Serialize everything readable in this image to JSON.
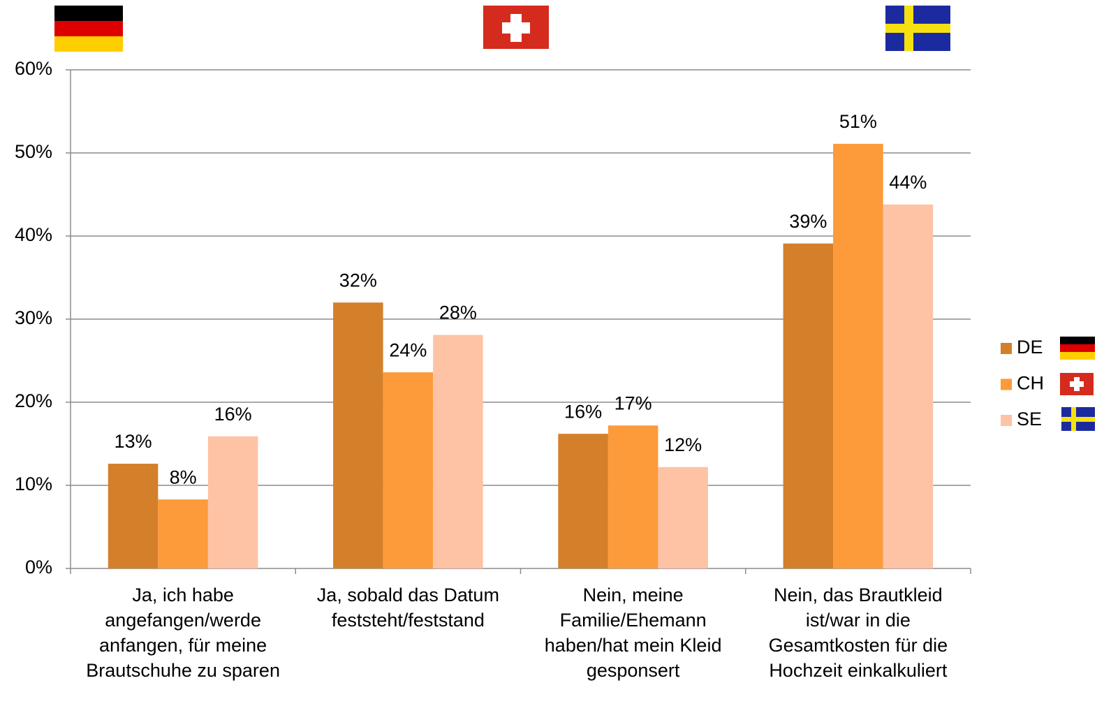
{
  "chart_data": {
    "type": "bar",
    "categories": [
      "Ja, ich habe angefangen/werde anfangen, für meine Brautschuhe zu sparen",
      "Ja, sobald das Datum feststeht/feststand",
      "Nein, meine Familie/Ehemann haben/hat mein Kleid gesponsert",
      "Nein, das Brautkleid ist/war in die Gesamtkosten für die Hochzeit einkalkuliert"
    ],
    "series": [
      {
        "name": "DE",
        "color": "#d47f2a",
        "values": [
          12.6,
          32,
          16.2,
          39.1
        ],
        "value_labels": [
          "13%",
          "32%",
          "16%",
          "39%"
        ]
      },
      {
        "name": "CH",
        "color": "#fd9a3a",
        "values": [
          8.3,
          23.6,
          17.2,
          51.1
        ],
        "value_labels": [
          "8%",
          "24%",
          "17%",
          "51%"
        ]
      },
      {
        "name": "SE",
        "color": "#fdc3a4",
        "values": [
          15.9,
          28.1,
          12.2,
          43.8
        ],
        "value_labels": [
          "16%",
          "28%",
          "12%",
          "44%"
        ]
      }
    ],
    "ylim": [
      0,
      60
    ],
    "yticks": [
      {
        "value": 0,
        "label": "0%"
      },
      {
        "value": 10,
        "label": "10%"
      },
      {
        "value": 20,
        "label": "20%"
      },
      {
        "value": 30,
        "label": "30%"
      },
      {
        "value": 40,
        "label": "40%"
      },
      {
        "value": 50,
        "label": "50%"
      },
      {
        "value": 60,
        "label": "60%"
      }
    ],
    "grid": true,
    "legend": "right"
  }
}
